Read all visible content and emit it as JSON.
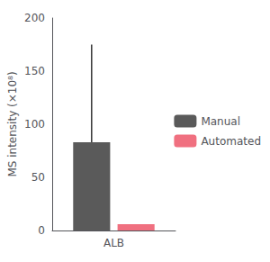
{
  "chart_data": {
    "type": "bar",
    "categories": [
      "ALB"
    ],
    "series": [
      {
        "name": "Manual",
        "color": "#5a5a5a",
        "values": [
          83
        ],
        "error_plus": [
          92
        ],
        "error_minus": [
          0
        ]
      },
      {
        "name": "Automated",
        "color": "#F07080",
        "values": [
          6
        ]
      }
    ],
    "ylabel": "MS intensity (×10⁸)",
    "ylim": [
      0,
      200
    ],
    "yticks": [
      0,
      50,
      100,
      150,
      200
    ],
    "grid": false,
    "legend": "right"
  }
}
